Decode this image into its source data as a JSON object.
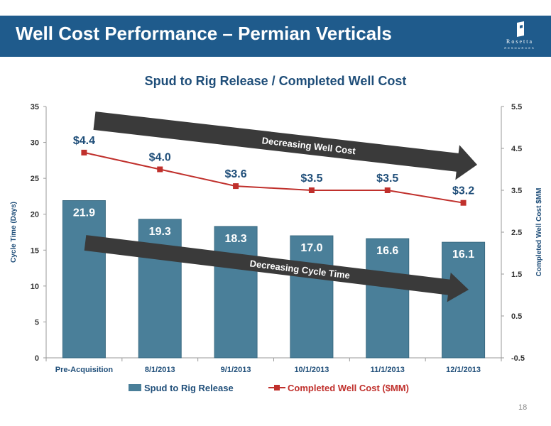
{
  "header": {
    "title": "Well Cost Performance – Permian Verticals"
  },
  "logo": {
    "name": "Rosetta",
    "sub": "RESOURCES"
  },
  "page_number": "18",
  "colors": {
    "banner": "#1f5b8c",
    "bar": "#4a7f99",
    "line": "#c0302c",
    "title": "#1f4e79"
  },
  "chart_data": {
    "type": "bar",
    "title": "Spud to Rig Release / Completed Well Cost",
    "categories": [
      "Pre-Acquisition",
      "8/1/2013",
      "9/1/2013",
      "10/1/2013",
      "11/1/2013",
      "12/1/2013"
    ],
    "ylabel": "Cycle Time (Days)",
    "y2label": "Completed Well Cost $MM",
    "ylim": [
      0,
      35
    ],
    "yticks": [
      "0",
      "5",
      "10",
      "15",
      "20",
      "25",
      "30",
      "35"
    ],
    "y2lim": [
      -0.5,
      5.5
    ],
    "y2ticks": [
      "-0.5",
      "0.5",
      "1.5",
      "2.5",
      "3.5",
      "4.5",
      "5.5"
    ],
    "series": [
      {
        "name": "Spud to Rig Release",
        "type": "bar",
        "axis": "left",
        "values": [
          21.9,
          19.3,
          18.3,
          17.0,
          16.6,
          16.1
        ],
        "labels": [
          "21.9",
          "19.3",
          "18.3",
          "17.0",
          "16.6",
          "16.1"
        ]
      },
      {
        "name": "Completed Well Cost ($MM)",
        "type": "line",
        "axis": "right",
        "values": [
          4.4,
          4.0,
          3.6,
          3.5,
          3.5,
          3.2
        ],
        "labels": [
          "$4.4",
          "$4.0",
          "$3.6",
          "$3.5",
          "$3.5",
          "$3.2"
        ]
      }
    ],
    "annotations": [
      "Decreasing Well Cost",
      "Decreasing Cycle Time"
    ],
    "legend": "bottom",
    "grid": false
  }
}
